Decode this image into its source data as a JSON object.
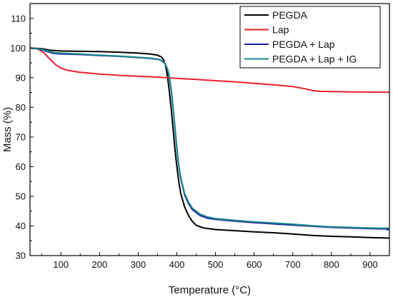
{
  "chart_data": {
    "type": "line",
    "title": "",
    "xlabel": "Temperature (°C)",
    "ylabel": "Mass (%)",
    "xlim": [
      20,
      950
    ],
    "ylim": [
      30,
      115
    ],
    "xticks": [
      100,
      200,
      300,
      400,
      500,
      600,
      700,
      800,
      900
    ],
    "yticks": [
      30,
      40,
      50,
      60,
      70,
      80,
      90,
      100,
      110
    ],
    "grid": false,
    "legend": "top-right",
    "series": [
      {
        "name": "PEGDA",
        "color": "#000000",
        "x": [
          20,
          50,
          70,
          100,
          150,
          200,
          250,
          300,
          330,
          350,
          360,
          365,
          370,
          375,
          380,
          385,
          390,
          395,
          400,
          405,
          410,
          420,
          430,
          440,
          450,
          470,
          500,
          550,
          600,
          650,
          700,
          750,
          800,
          850,
          900,
          950
        ],
        "y": [
          100,
          99.8,
          99.3,
          99,
          98.9,
          98.8,
          98.6,
          98.3,
          98,
          97.6,
          97,
          96.2,
          94.5,
          91,
          86,
          80,
          73,
          66,
          60,
          55,
          51,
          46.5,
          43.5,
          41.5,
          40.2,
          39.3,
          38.8,
          38.4,
          38.0,
          37.7,
          37.3,
          36.8,
          36.5,
          36.3,
          36.1,
          35.9
        ]
      },
      {
        "name": "Lap",
        "color": "#e8202a",
        "x": [
          20,
          40,
          55,
          70,
          85,
          100,
          120,
          150,
          200,
          250,
          300,
          350,
          400,
          450,
          500,
          550,
          600,
          650,
          700,
          730,
          750,
          770,
          800,
          850,
          900,
          950
        ],
        "y": [
          100,
          99.7,
          98.5,
          96.5,
          94.5,
          93.2,
          92.4,
          91.8,
          91.2,
          90.8,
          90.5,
          90.2,
          89.8,
          89.4,
          89.0,
          88.6,
          88.1,
          87.6,
          87.0,
          86.3,
          85.7,
          85.4,
          85.3,
          85.2,
          85.15,
          85.1
        ]
      },
      {
        "name": "PEGDA + Lap",
        "color": "#1f1fa8",
        "x": [
          20,
          50,
          60,
          80,
          100,
          150,
          200,
          250,
          300,
          330,
          350,
          360,
          365,
          370,
          375,
          380,
          385,
          390,
          395,
          400,
          405,
          410,
          420,
          430,
          440,
          460,
          480,
          500,
          550,
          600,
          650,
          700,
          750,
          800,
          850,
          900,
          940,
          945,
          950
        ],
        "y": [
          100,
          99.5,
          99,
          98.2,
          98,
          97.8,
          97.5,
          97.2,
          96.8,
          96.5,
          96.2,
          95.8,
          95.3,
          94.5,
          93,
          90.5,
          86,
          80,
          73,
          66,
          60,
          56,
          50.5,
          47.5,
          45.5,
          43.5,
          42.6,
          42.2,
          41.6,
          41.1,
          40.7,
          40.3,
          39.9,
          39.5,
          39.3,
          39.1,
          39.0,
          38.7,
          39.0
        ]
      },
      {
        "name": "PEGDA + Lap + IG",
        "color": "#1a8a8a",
        "x": [
          20,
          50,
          60,
          80,
          100,
          150,
          200,
          250,
          300,
          330,
          350,
          360,
          365,
          370,
          375,
          380,
          385,
          390,
          395,
          400,
          405,
          410,
          420,
          430,
          440,
          460,
          480,
          500,
          550,
          600,
          650,
          700,
          750,
          800,
          850,
          900,
          950
        ],
        "y": [
          100,
          99.6,
          99.2,
          98.5,
          98.3,
          98,
          97.6,
          97.3,
          96.9,
          96.6,
          96.3,
          95.9,
          95.4,
          94.6,
          93.2,
          91,
          86.5,
          80.5,
          73.5,
          66.5,
          60.5,
          56.5,
          51,
          48,
          46,
          44,
          43,
          42.5,
          41.9,
          41.4,
          41.0,
          40.6,
          40.1,
          39.7,
          39.5,
          39.3,
          39.2
        ]
      }
    ]
  }
}
